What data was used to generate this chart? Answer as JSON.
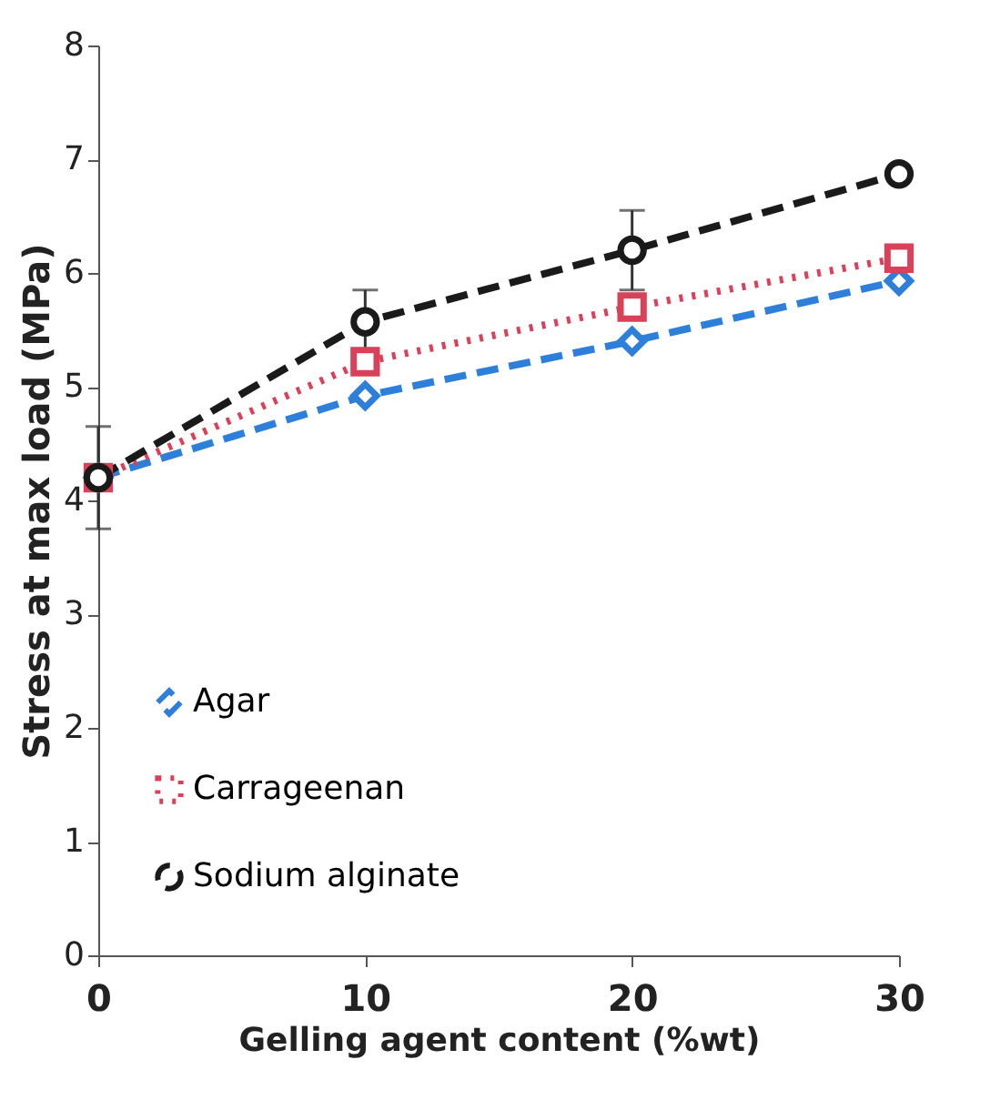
{
  "chart_data": {
    "type": "line",
    "xlabel": "Gelling agent content (%wt)",
    "ylabel": "Stress at max load (MPa)",
    "x": [
      0,
      10,
      20,
      30
    ],
    "series": [
      {
        "name": "Agar",
        "color": "#2e7fd9",
        "marker": "diamond",
        "line_style": "dashed",
        "values": [
          4.2,
          4.92,
          5.4,
          5.93
        ]
      },
      {
        "name": "Carrageenan",
        "color": "#d9415a",
        "marker": "square",
        "line_style": "dotted",
        "values": [
          4.2,
          5.22,
          5.7,
          6.13
        ]
      },
      {
        "name": "Sodium alginate",
        "color": "#1a1a1a",
        "marker": "circle",
        "line_style": "dashed",
        "values": [
          4.2,
          5.57,
          6.2,
          6.87
        ],
        "errors": [
          0.45,
          0.28,
          0.35,
          null
        ]
      }
    ],
    "xlim": [
      0,
      30
    ],
    "xticks": [
      0,
      10,
      20,
      30
    ],
    "ylim": [
      0,
      8
    ],
    "yticks": [
      0,
      1,
      2,
      3,
      4,
      5,
      6,
      7,
      8
    ],
    "grid": false,
    "legend": "bottom left"
  }
}
